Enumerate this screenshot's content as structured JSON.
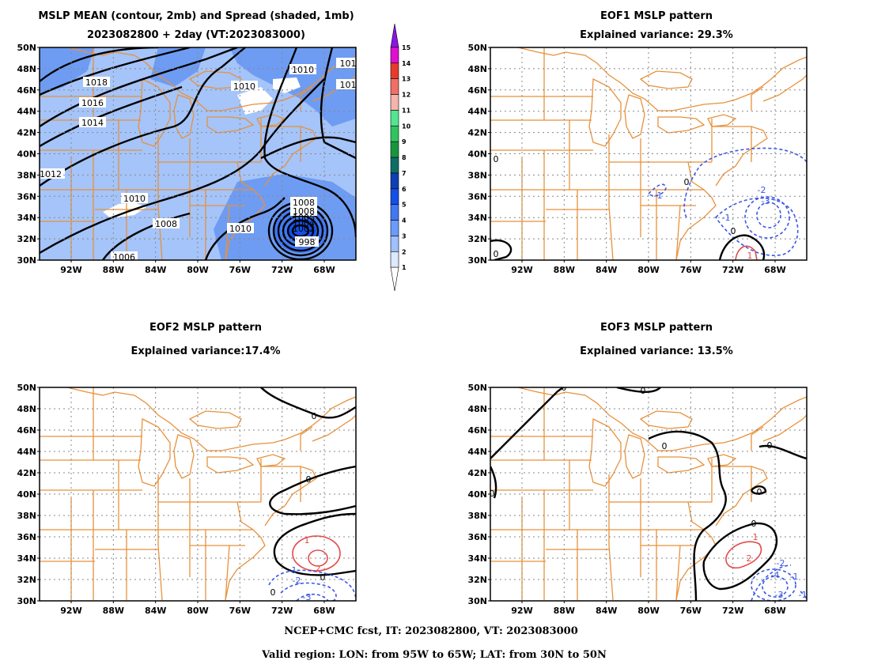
{
  "panels": [
    {
      "id": "mean",
      "title_lines": [
        "MSLP MEAN (contour, 2mb) and Spread (shaded, 1mb)",
        "2023082800 + 2day (VT:2023083000)"
      ],
      "contour_labels": [
        "1018",
        "1016",
        "1014",
        "1012",
        "1010",
        "1010",
        "1010",
        "1010",
        "1008",
        "1008",
        "1006",
        "1008",
        "1006",
        "1004",
        "1002",
        "998",
        "101",
        "101"
      ]
    },
    {
      "id": "eof1",
      "title_lines": [
        "EOF1 MSLP pattern",
        "Explained variance: 29.3%"
      ],
      "contour_labels": [
        "0",
        "0",
        "0",
        "1",
        "-1",
        "-1",
        "-2",
        "-3",
        "0"
      ]
    },
    {
      "id": "eof2",
      "title_lines": [
        "EOF2 MSLP pattern",
        "Explained variance:17.4%"
      ],
      "contour_labels": [
        "0",
        "0",
        "0",
        "1",
        "2",
        "0",
        "-1",
        "-2",
        "-3"
      ]
    },
    {
      "id": "eof3",
      "title_lines": [
        "EOF3 MSLP pattern",
        "Explained variance: 13.5%"
      ],
      "contour_labels": [
        "0",
        "0",
        "0",
        "0",
        "0",
        "0",
        "0",
        "1",
        "2",
        "-1",
        "-2",
        "-4",
        "-3",
        "-1"
      ]
    }
  ],
  "axes": {
    "lat_labels": [
      "50N",
      "48N",
      "46N",
      "44N",
      "42N",
      "40N",
      "38N",
      "36N",
      "34N",
      "32N",
      "30N"
    ],
    "lon_labels": [
      "92W",
      "88W",
      "84W",
      "80W",
      "76W",
      "72W",
      "68W"
    ]
  },
  "colorbar": {
    "labels": [
      "1",
      "2",
      "3",
      "4",
      "5",
      "6",
      "7",
      "8",
      "9",
      "10",
      "11",
      "12",
      "13",
      "14",
      "15"
    ],
    "colors": [
      "#dce9ff",
      "#9ec0ff",
      "#6a9cff",
      "#3f78f5",
      "#1450e6",
      "#0f3fb4",
      "#0d6e66",
      "#18963f",
      "#2ec55e",
      "#52e690",
      "#f7b3ad",
      "#f07068",
      "#e63a2c",
      "#e00fd2",
      "#8a14e6"
    ]
  },
  "colors": {
    "shade_light": "#a5c4f9",
    "shade_mid": "#6e9cf3",
    "shade_dark": "#1450e6",
    "state_lines": "#e8913b",
    "positive": "#e34a4a",
    "negative": "#3b57e6",
    "zero": "#000000",
    "grid": "#888888"
  },
  "footer": {
    "line1": "NCEP+CMC fcst, IT: 2023082800, VT: 2023083000",
    "line2": "Valid region: LON: from 95W to 65W; LAT: from 30N to 50N"
  }
}
